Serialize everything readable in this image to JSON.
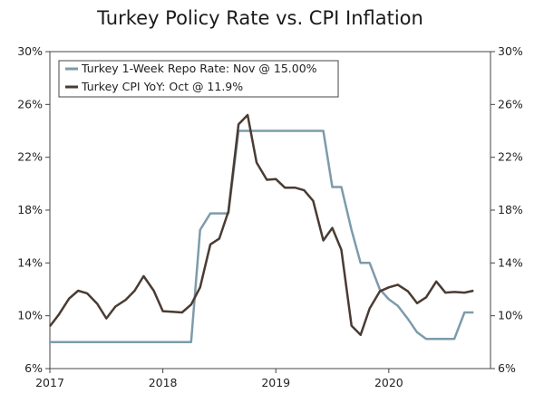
{
  "chart_data": {
    "type": "line",
    "title": "Turkey Policy Rate vs. CPI Inflation",
    "xlabel": "",
    "ylabel": "",
    "ylim": [
      6,
      30
    ],
    "xlim": [
      2017.0,
      2020.9
    ],
    "y_ticks": [
      "6%",
      "10%",
      "14%",
      "18%",
      "22%",
      "26%",
      "30%"
    ],
    "y_tick_values": [
      6,
      10,
      14,
      18,
      22,
      26,
      30
    ],
    "x_ticks": [
      "2017",
      "2018",
      "2019",
      "2020"
    ],
    "x_tick_values": [
      2017,
      2018,
      2019,
      2020
    ],
    "legend_position": "top-left",
    "series": [
      {
        "name": "Turkey 1-Week Repo Rate: Nov @ 15.00%",
        "color": "#7d9bab",
        "points": [
          [
            2017.0,
            8.0
          ],
          [
            2018.25,
            8.0
          ],
          [
            2018.33,
            16.5
          ],
          [
            2018.42,
            17.75
          ],
          [
            2018.58,
            17.75
          ],
          [
            2018.67,
            24.0
          ],
          [
            2019.42,
            24.0
          ],
          [
            2019.5,
            19.75
          ],
          [
            2019.58,
            19.75
          ],
          [
            2019.67,
            16.5
          ],
          [
            2019.75,
            14.0
          ],
          [
            2019.83,
            14.0
          ],
          [
            2019.92,
            12.0
          ],
          [
            2020.0,
            11.25
          ],
          [
            2020.08,
            10.75
          ],
          [
            2020.17,
            9.75
          ],
          [
            2020.25,
            8.75
          ],
          [
            2020.33,
            8.25
          ],
          [
            2020.58,
            8.25
          ],
          [
            2020.67,
            10.25
          ],
          [
            2020.75,
            10.25
          ]
        ]
      },
      {
        "name": "Turkey CPI YoY: Oct @ 11.9%",
        "color": "#4a3b33",
        "points": [
          [
            2017.0,
            9.2
          ],
          [
            2017.08,
            10.1
          ],
          [
            2017.17,
            11.3
          ],
          [
            2017.25,
            11.9
          ],
          [
            2017.33,
            11.7
          ],
          [
            2017.42,
            10.9
          ],
          [
            2017.5,
            9.8
          ],
          [
            2017.58,
            10.7
          ],
          [
            2017.67,
            11.2
          ],
          [
            2017.75,
            11.9
          ],
          [
            2017.83,
            13.0
          ],
          [
            2017.92,
            11.9
          ],
          [
            2018.0,
            10.35
          ],
          [
            2018.08,
            10.3
          ],
          [
            2018.17,
            10.25
          ],
          [
            2018.25,
            10.85
          ],
          [
            2018.33,
            12.15
          ],
          [
            2018.42,
            15.4
          ],
          [
            2018.5,
            15.85
          ],
          [
            2018.58,
            17.9
          ],
          [
            2018.67,
            24.5
          ],
          [
            2018.75,
            25.2
          ],
          [
            2018.83,
            21.6
          ],
          [
            2018.92,
            20.3
          ],
          [
            2019.0,
            20.35
          ],
          [
            2019.08,
            19.7
          ],
          [
            2019.17,
            19.7
          ],
          [
            2019.25,
            19.5
          ],
          [
            2019.33,
            18.7
          ],
          [
            2019.42,
            15.7
          ],
          [
            2019.5,
            16.65
          ],
          [
            2019.58,
            15.0
          ],
          [
            2019.67,
            9.25
          ],
          [
            2019.75,
            8.55
          ],
          [
            2019.83,
            10.55
          ],
          [
            2019.92,
            11.85
          ],
          [
            2020.0,
            12.15
          ],
          [
            2020.08,
            12.35
          ],
          [
            2020.17,
            11.85
          ],
          [
            2020.25,
            10.95
          ],
          [
            2020.33,
            11.4
          ],
          [
            2020.42,
            12.6
          ],
          [
            2020.5,
            11.75
          ],
          [
            2020.58,
            11.8
          ],
          [
            2020.67,
            11.75
          ],
          [
            2020.75,
            11.9
          ]
        ]
      }
    ]
  }
}
